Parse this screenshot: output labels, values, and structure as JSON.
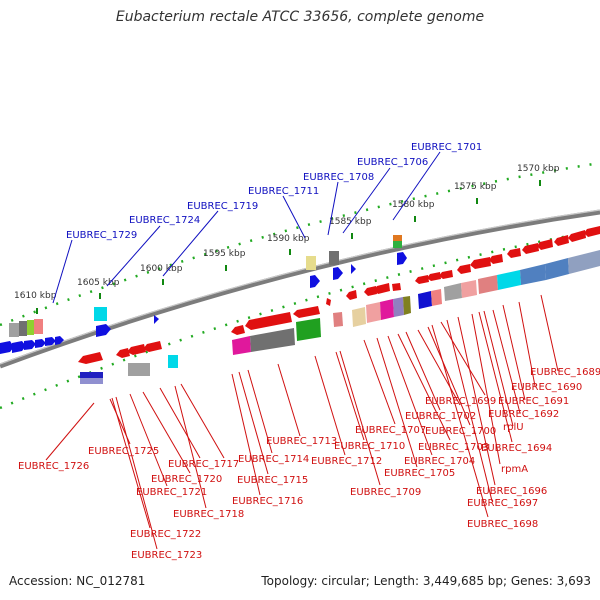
{
  "title": "Eubacterium rectale ATCC 33656, complete genome",
  "accession": "Accession: NC_012781",
  "topology": "Topology: circular; Length: 3,449,685 bp; Genes: 3,693",
  "kbp_labels": [
    "1610 kbp",
    "1605 kbp",
    "1600 kbp",
    "1595 kbp",
    "1590 kbp",
    "1585 kbp",
    "1580 kbp",
    "1575 kbp",
    "1570 kbp"
  ],
  "top_genes": [
    "EUBREC_1729",
    "EUBREC_1724",
    "EUBREC_1719",
    "EUBREC_1711",
    "EUBREC_1708",
    "EUBREC_1706",
    "EUBREC_1701"
  ],
  "bottom_genes": [
    "EUBREC_1726",
    "EUBREC_1725",
    "EUBREC_1722",
    "EUBREC_1723",
    "EUBREC_1721",
    "EUBREC_1720",
    "EUBREC_1717",
    "EUBREC_1718",
    "EUBREC_1716",
    "EUBREC_1715",
    "EUBREC_1714",
    "EUBREC_1713",
    "EUBREC_1712",
    "EUBREC_1710",
    "EUBREC_1709",
    "EUBREC_1707",
    "EUBREC_1705",
    "EUBREC_1704",
    "EUBREC_1703",
    "EUBREC_1702",
    "EUBREC_1700",
    "EUBREC_1699",
    "EUBREC_1698",
    "EUBREC_1697",
    "EUBREC_1696",
    "rpmA",
    "EUBREC_1694",
    "rplU",
    "EUBREC_1692",
    "EUBREC_1691",
    "EUBREC_1690",
    "EUBREC_1689"
  ],
  "colors": {
    "forward_strand": "#1010e0",
    "reverse_strand": "#e01010",
    "backbone": "#808080",
    "tick": "#118811"
  }
}
